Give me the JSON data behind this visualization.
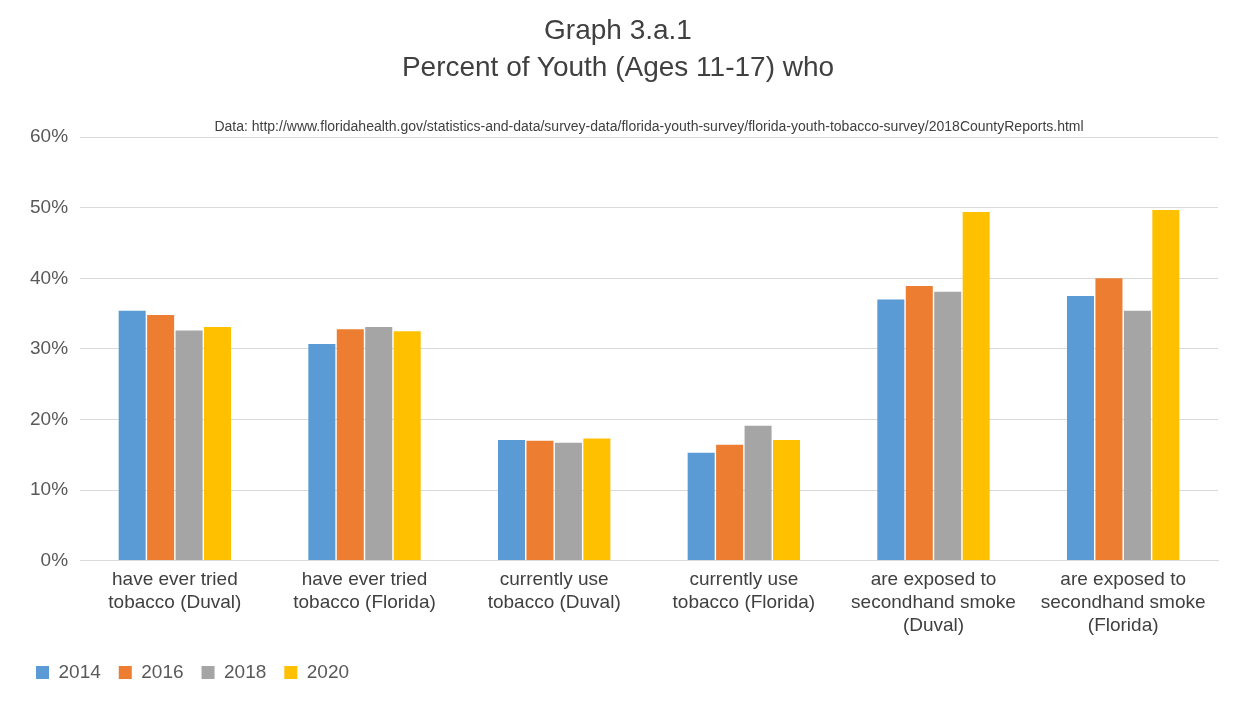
{
  "chart_data": {
    "type": "bar",
    "title": "Graph 3.a.1",
    "subtitle": "Percent of Youth (Ages 11-17) who",
    "annotations": [
      "Data: http://www.floridahealth.gov/statistics-and-data/survey-data/florida-youth-survey/florida-youth-tobacco-survey/2018CountyReports.html"
    ],
    "categories": [
      "have ever tried tobacco (Duval)",
      "have ever tried tobacco (Florida)",
      "currently use tobacco (Duval)",
      "currently use tobacco (Florida)",
      "are exposed to secondhand smoke (Duval)",
      "are exposed to secondhand smoke (Florida)"
    ],
    "series": [
      {
        "name": "2014",
        "color": "#5b9bd5",
        "values": [
          35.4,
          30.7,
          17.1,
          15.3,
          37.0,
          37.5
        ]
      },
      {
        "name": "2016",
        "color": "#ed7d31",
        "values": [
          34.8,
          32.8,
          17.0,
          16.4,
          38.9,
          40.0
        ]
      },
      {
        "name": "2018",
        "color": "#a5a5a5",
        "values": [
          32.6,
          33.1,
          16.7,
          19.1,
          38.1,
          35.4
        ]
      },
      {
        "name": "2020",
        "color": "#ffc000",
        "values": [
          33.1,
          32.5,
          17.3,
          17.1,
          49.4,
          49.7
        ]
      }
    ],
    "ylim": [
      0,
      60
    ],
    "yticks": [
      {
        "value": 0,
        "label": "0%"
      },
      {
        "value": 10,
        "label": "10%"
      },
      {
        "value": 20,
        "label": "20%"
      },
      {
        "value": 30,
        "label": "30%"
      },
      {
        "value": 40,
        "label": "40%"
      },
      {
        "value": 50,
        "label": "50%"
      },
      {
        "value": 60,
        "label": "60%"
      }
    ],
    "grid": "y",
    "legend": "bottom left"
  }
}
